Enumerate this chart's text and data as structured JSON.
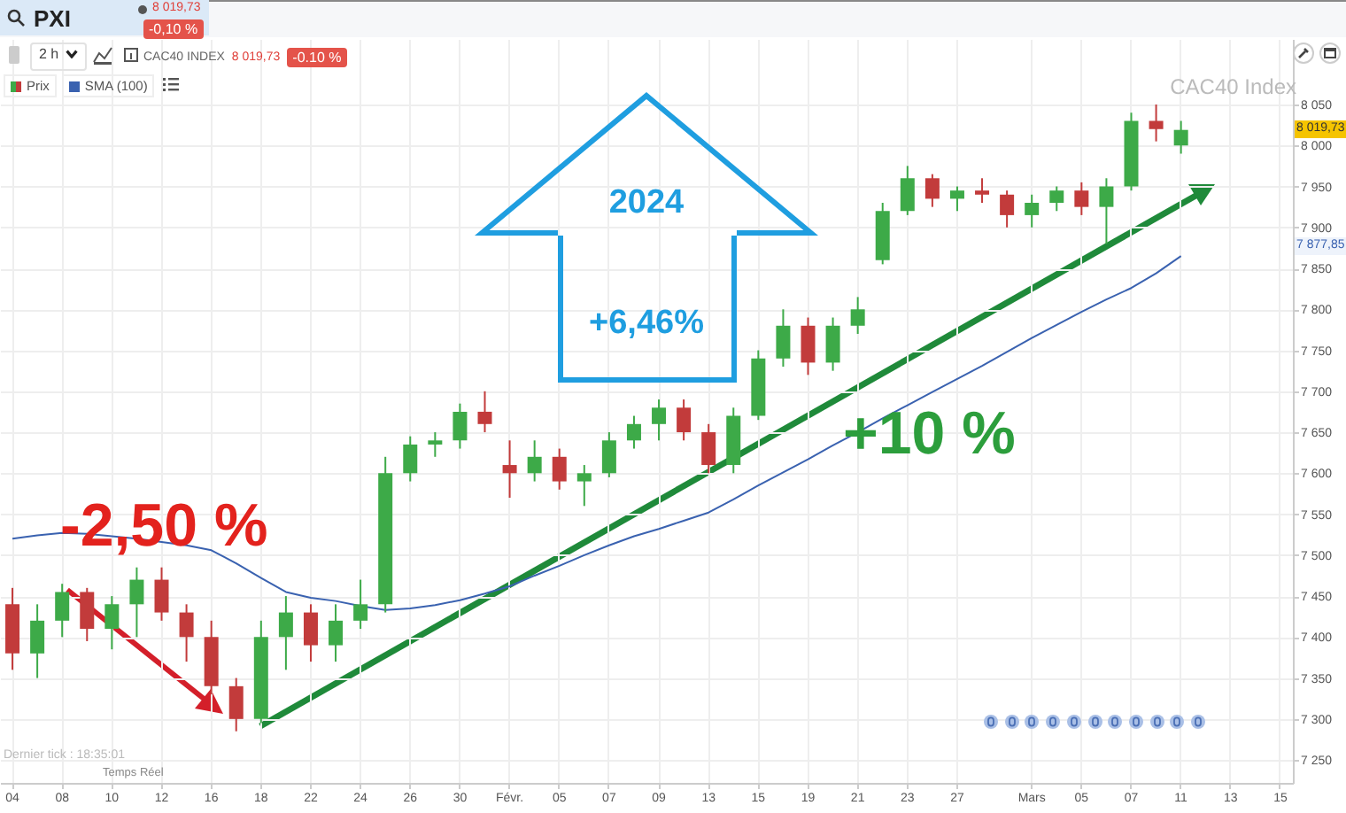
{
  "chart_data": {
    "type": "candlestick",
    "title": "PXI",
    "categories": [
      "04",
      null,
      "08",
      null,
      "10",
      null,
      "12",
      null,
      "16",
      null,
      "18",
      null,
      "22",
      null,
      "24",
      null,
      "26",
      null,
      "30",
      null,
      "Févr.",
      null,
      "05",
      null,
      "07",
      null,
      "09",
      null,
      "13",
      null,
      "15",
      null,
      "19",
      null,
      "21",
      null,
      "23",
      null,
      "27",
      null,
      null,
      "Mars",
      null,
      "05",
      null,
      "07",
      null,
      "11",
      null,
      "13",
      null,
      "15"
    ],
    "series": [
      {
        "name": "Prix",
        "type": "candlestick",
        "ohlc": [
          [
            7440,
            7460,
            7360,
            7380
          ],
          [
            7380,
            7440,
            7350,
            7420
          ],
          [
            7420,
            7465,
            7400,
            7455
          ],
          [
            7455,
            7460,
            7395,
            7410
          ],
          [
            7410,
            7450,
            7385,
            7440
          ],
          [
            7440,
            7485,
            7400,
            7470
          ],
          [
            7470,
            7485,
            7420,
            7430
          ],
          [
            7430,
            7440,
            7370,
            7400
          ],
          [
            7400,
            7420,
            7330,
            7340
          ],
          [
            7340,
            7350,
            7285,
            7300
          ],
          [
            7300,
            7420,
            7295,
            7400
          ],
          [
            7400,
            7450,
            7360,
            7430
          ],
          [
            7430,
            7440,
            7370,
            7390
          ],
          [
            7390,
            7440,
            7370,
            7420
          ],
          [
            7420,
            7470,
            7410,
            7440
          ],
          [
            7440,
            7620,
            7430,
            7600
          ],
          [
            7600,
            7645,
            7590,
            7635
          ],
          [
            7635,
            7650,
            7620,
            7640
          ],
          [
            7640,
            7685,
            7630,
            7675
          ],
          [
            7675,
            7700,
            7650,
            7660
          ],
          [
            7610,
            7640,
            7570,
            7600
          ],
          [
            7600,
            7640,
            7590,
            7620
          ],
          [
            7620,
            7630,
            7580,
            7590
          ],
          [
            7590,
            7610,
            7560,
            7600
          ],
          [
            7600,
            7650,
            7595,
            7640
          ],
          [
            7640,
            7670,
            7630,
            7660
          ],
          [
            7660,
            7690,
            7640,
            7680
          ],
          [
            7680,
            7690,
            7640,
            7650
          ],
          [
            7650,
            7660,
            7600,
            7610
          ],
          [
            7610,
            7680,
            7600,
            7670
          ],
          [
            7670,
            7750,
            7665,
            7740
          ],
          [
            7740,
            7800,
            7730,
            7780
          ],
          [
            7780,
            7790,
            7720,
            7735
          ],
          [
            7735,
            7790,
            7725,
            7780
          ],
          [
            7780,
            7815,
            7770,
            7800
          ],
          [
            7860,
            7930,
            7855,
            7920
          ],
          [
            7920,
            7975,
            7915,
            7960
          ],
          [
            7960,
            7965,
            7925,
            7935
          ],
          [
            7935,
            7950,
            7920,
            7945
          ],
          [
            7945,
            7960,
            7930,
            7940
          ],
          [
            7940,
            7945,
            7900,
            7915
          ],
          [
            7915,
            7940,
            7900,
            7930
          ],
          [
            7930,
            7950,
            7920,
            7945
          ],
          [
            7945,
            7955,
            7915,
            7925
          ],
          [
            7925,
            7960,
            7880,
            7950
          ],
          [
            7950,
            8040,
            7945,
            8030
          ],
          [
            8030,
            8050,
            8005,
            8020
          ],
          [
            8000,
            8030,
            7990,
            8019
          ],
          null,
          null,
          null,
          null
        ],
        "colors": [
          "#c23b3b",
          "#3daa48",
          "#3daa48",
          "#c23b3b",
          "#3daa48",
          "#3daa48",
          "#c23b3b",
          "#c23b3b",
          "#c23b3b",
          "#c23b3b",
          "#3daa48",
          "#3daa48",
          "#c23b3b",
          "#3daa48",
          "#3daa48",
          "#3daa48",
          "#3daa48",
          "#3daa48",
          "#3daa48",
          "#c23b3b",
          "#c23b3b",
          "#3daa48",
          "#c23b3b",
          "#3daa48",
          "#3daa48",
          "#3daa48",
          "#3daa48",
          "#c23b3b",
          "#c23b3b",
          "#3daa48",
          "#3daa48",
          "#3daa48",
          "#c23b3b",
          "#3daa48",
          "#3daa48",
          "#3daa48",
          "#3daa48",
          "#c23b3b",
          "#3daa48",
          "#c23b3b",
          "#c23b3b",
          "#3daa48",
          "#3daa48",
          "#c23b3b",
          "#3daa48",
          "#3daa48",
          "#c23b3b",
          "#3daa48",
          null,
          null,
          null,
          null
        ]
      },
      {
        "name": "SMA (100)",
        "type": "line",
        "color": "#3a62b0",
        "values": [
          7520,
          7524,
          7527,
          7526,
          7523,
          7520,
          7516,
          7512,
          7506,
          7490,
          7472,
          7455,
          7448,
          7444,
          7438,
          7433,
          7435,
          7439,
          7445,
          7453,
          7462,
          7475,
          7487,
          7500,
          7512,
          7523,
          7532,
          7542,
          7552,
          7568,
          7585,
          7601,
          7617,
          7634,
          7650,
          7667,
          7683,
          7699,
          7715,
          7731,
          7748,
          7765,
          7781,
          7797,
          7812,
          7826,
          7844,
          7865,
          null,
          null,
          null,
          null
        ]
      }
    ],
    "ylim": [
      7222,
      8130
    ],
    "yticks": [
      {
        "value": 7250,
        "label": "7 250"
      },
      {
        "value": 7300,
        "label": "7 300"
      },
      {
        "value": 7350,
        "label": "7 350"
      },
      {
        "value": 7400,
        "label": "7 400"
      },
      {
        "value": 7450,
        "label": "7 450"
      },
      {
        "value": 7500,
        "label": "7 500"
      },
      {
        "value": 7550,
        "label": "7 550"
      },
      {
        "value": 7600,
        "label": "7 600"
      },
      {
        "value": 7650,
        "label": "7 650"
      },
      {
        "value": 7700,
        "label": "7 700"
      },
      {
        "value": 7750,
        "label": "7 750"
      },
      {
        "value": 7800,
        "label": "7 800"
      },
      {
        "value": 7850,
        "label": "7 850"
      },
      {
        "value": 7900,
        "label": "7 900"
      },
      {
        "value": 7950,
        "label": "7 950"
      },
      {
        "value": 8000,
        "label": "8 000"
      },
      {
        "value": 8050,
        "label": "8 050"
      }
    ],
    "grid": true,
    "legend": "top left",
    "annotations": [
      "8 019,73",
      "-0,10 %",
      "2 h",
      "CAC40 INDEX",
      "8 019,73",
      "-0.10 %",
      "CAC40 Index",
      "-2,50 %",
      "2024",
      "+6,46%",
      "+10 %",
      "Dernier tick : 18:35:01",
      "Temps Réel",
      {
        "text": "8 019,73",
        "y": 8019.73
      },
      {
        "text": "7 877,85",
        "y": 7877.85
      }
    ]
  }
}
